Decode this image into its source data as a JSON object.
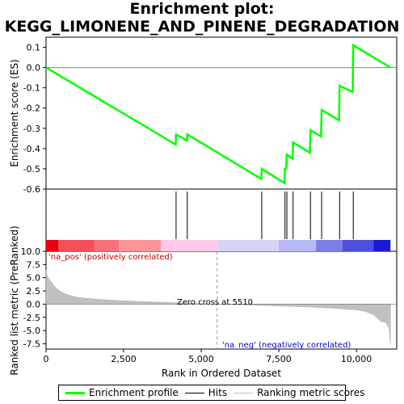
{
  "title": "Enrichment plot: KEGG_LIMONENE_AND_PINENE_DEGRADATION",
  "legend": {
    "items": [
      {
        "label": "Enrichment profile",
        "color": "#00ff00"
      },
      {
        "label": "Hits",
        "color": "#000000"
      },
      {
        "label": "Ranking metric scores",
        "color": "#c0c0c0"
      }
    ]
  },
  "chart_data": [
    {
      "type": "line",
      "ylabel": "Enrichment score (ES)",
      "ylim": [
        -0.6,
        0.15
      ],
      "yticks": [
        "0.1",
        "0.0",
        "-0.1",
        "-0.2",
        "-0.3",
        "-0.4",
        "-0.5",
        "-0.6"
      ],
      "xlim": [
        0,
        11300
      ],
      "series": [
        {
          "name": "Enrichment profile",
          "color": "#00ff00",
          "x": [
            0,
            4180,
            4190,
            4540,
            4550,
            6940,
            6950,
            7680,
            7700,
            7740,
            7760,
            7940,
            7960,
            8500,
            8520,
            8860,
            8880,
            9440,
            9460,
            9880,
            9900,
            11100
          ],
          "y": [
            0,
            -0.38,
            -0.33,
            -0.36,
            -0.33,
            -0.55,
            -0.5,
            -0.57,
            -0.5,
            -0.5,
            -0.43,
            -0.45,
            -0.37,
            -0.42,
            -0.31,
            -0.34,
            -0.21,
            -0.26,
            -0.09,
            -0.12,
            0.11,
            0
          ]
        }
      ]
    },
    {
      "type": "hits",
      "hits_x": [
        4190,
        4550,
        6950,
        7700,
        7760,
        7960,
        8520,
        8880,
        9460,
        9900
      ]
    },
    {
      "type": "heatmap",
      "bands": [
        {
          "from": 0,
          "to": 400,
          "color": "#e8000c"
        },
        {
          "from": 400,
          "to": 1550,
          "color": "#f45058"
        },
        {
          "from": 1550,
          "to": 2350,
          "color": "#f7727a"
        },
        {
          "from": 2350,
          "to": 3700,
          "color": "#fb9499"
        },
        {
          "from": 3700,
          "to": 5500,
          "color": "#fec8e8"
        },
        {
          "from": 5500,
          "to": 7500,
          "color": "#d4d4f8"
        },
        {
          "from": 7500,
          "to": 8700,
          "color": "#b8b8f4"
        },
        {
          "from": 8700,
          "to": 9550,
          "color": "#7d7de8"
        },
        {
          "from": 9550,
          "to": 10550,
          "color": "#4e4edc"
        },
        {
          "from": 10550,
          "to": 11100,
          "color": "#1a1acc"
        }
      ]
    },
    {
      "type": "area",
      "xlabel": "Rank in Ordered Dataset",
      "ylabel": "Ranked list metric (PreRanked)",
      "ylim": [
        -8.5,
        10
      ],
      "yticks": [
        "10.0",
        "7.5",
        "5.0",
        "2.5",
        "0.0",
        "-2.5",
        "-5.0",
        "-7.5"
      ],
      "xticks": [
        "0",
        "2,500",
        "5,000",
        "7,500",
        "10,000"
      ],
      "x": [
        0,
        50,
        150,
        300,
        450,
        600,
        800,
        1000,
        1500,
        2000,
        3000,
        4000,
        5000,
        5510,
        6500,
        7500,
        8500,
        9500,
        10000,
        10300,
        10550,
        10700,
        10800,
        10950,
        11050,
        11100
      ],
      "y": [
        6.5,
        5.2,
        4.3,
        3.2,
        2.5,
        2.0,
        1.6,
        1.3,
        1.0,
        0.8,
        0.5,
        0.3,
        0.1,
        0.0,
        -0.15,
        -0.35,
        -0.55,
        -0.85,
        -1.1,
        -1.4,
        -2.0,
        -2.8,
        -3.3,
        -3.5,
        -4.5,
        -7.8
      ],
      "annotations": {
        "pos": "'na_pos' (positively correlated)",
        "neg": "'na_neg' (negatively correlated)",
        "zero": "Zero cross at 5510",
        "zero_x": 5510
      }
    }
  ]
}
